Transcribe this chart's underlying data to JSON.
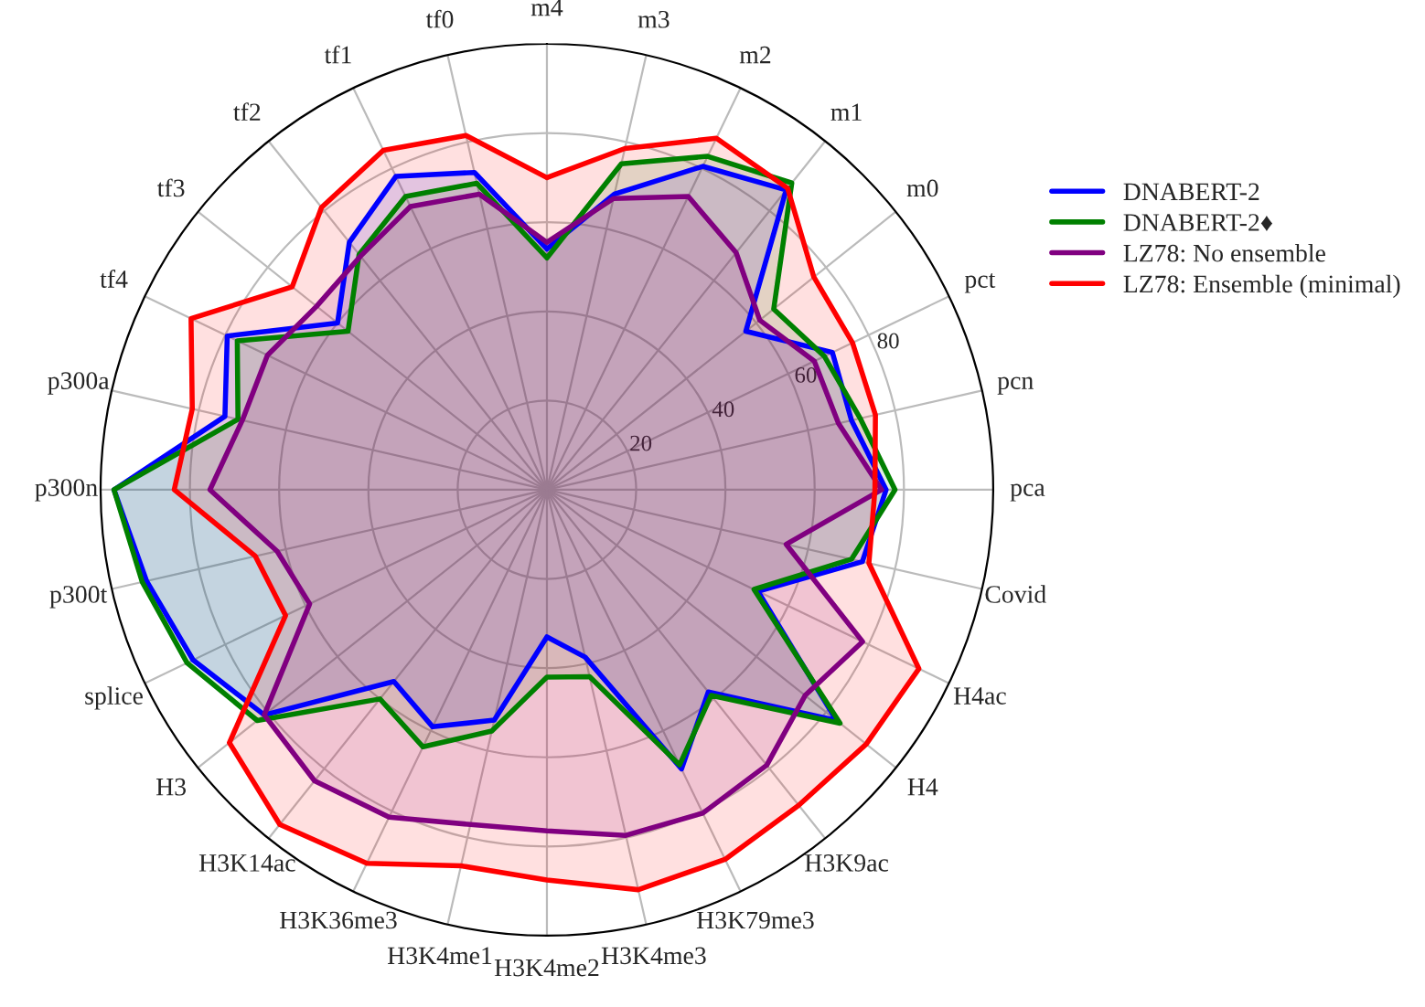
{
  "chart_data": {
    "type": "radar",
    "categories": [
      "m4",
      "m3",
      "m2",
      "m1",
      "m0",
      "pct",
      "pcn",
      "pca",
      "Covid",
      "H4ac",
      "H4",
      "H3K9ac",
      "H3K79me3",
      "H3K4me3",
      "H3K4me2",
      "H3K4me1",
      "H3K36me3",
      "H3K14ac",
      "H3",
      "splice",
      "p300t",
      "p300n",
      "p300a",
      "tf4",
      "tf3",
      "tf2",
      "tf1",
      "tf0"
    ],
    "series": [
      {
        "name": "DNABERT-2",
        "color": "#0000ff",
        "values": [
          54,
          68,
          80.5,
          86,
          57,
          71,
          70,
          76,
          72.5,
          52.5,
          83,
          58,
          69.5,
          38.5,
          33,
          53,
          59,
          55,
          81,
          88,
          92,
          97,
          74,
          79.5,
          60,
          71,
          78,
          73
        ]
      },
      {
        "name": "DNABERT-2♦",
        "color": "#008000",
        "values": [
          52,
          75,
          83,
          88,
          65,
          69,
          72,
          78,
          70,
          51.5,
          84,
          59,
          68.5,
          43,
          42,
          55.5,
          64,
          60,
          83,
          89.5,
          93,
          97,
          71,
          77,
          57,
          67.5,
          73,
          70.5
        ]
      },
      {
        "name": "LZ78: No ensemble",
        "color": "#800080",
        "values": [
          55.5,
          67,
          73,
          68,
          61,
          66.5,
          67,
          75,
          55,
          78.5,
          74,
          79,
          80.5,
          79.5,
          76.5,
          77,
          81.5,
          83.5,
          81,
          59,
          62,
          75.5,
          70,
          69.5,
          66,
          67,
          70.5,
          68
        ]
      },
      {
        "name": "LZ78: Ensemble (minimal)",
        "color": "#ff0000",
        "values": [
          70,
          78.5,
          87.5,
          86.5,
          76.5,
          76,
          75.5,
          73.5,
          74,
          92.5,
          91.5,
          90.5,
          92,
          92,
          87.5,
          86.5,
          93,
          96,
          91,
          65,
          67,
          83.5,
          81.5,
          88.5,
          73,
          81,
          84.5,
          81.5
        ]
      }
    ],
    "ylim": [
      0,
      100
    ],
    "yticks": [
      20,
      40,
      60,
      80
    ],
    "grid": true,
    "legend": "right"
  }
}
